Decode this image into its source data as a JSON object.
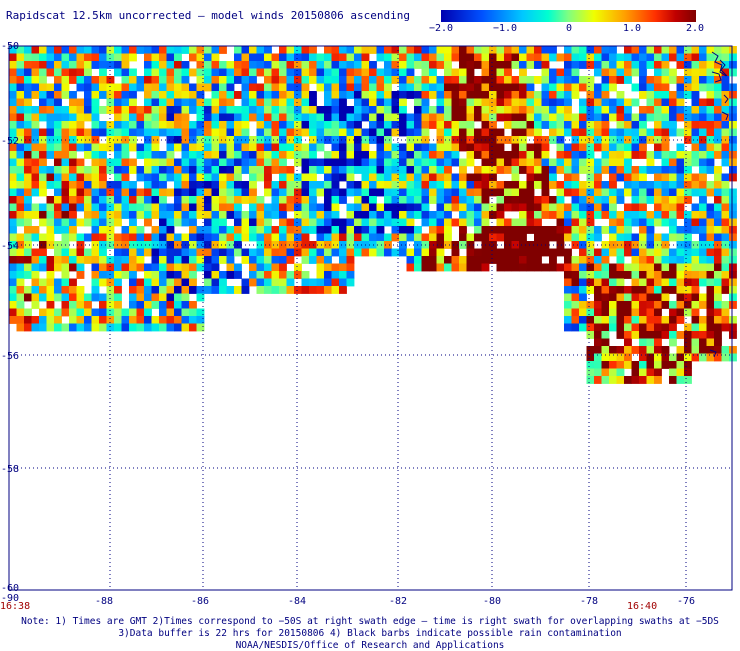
{
  "title": "Rapidscat 12.5km uncorrected — model winds 20150806 ascending",
  "colorbar": {
    "ticks": [
      {
        "value": -2.0,
        "label": "−2.0"
      },
      {
        "value": -1.0,
        "label": "−1.0"
      },
      {
        "value": 0,
        "label": "0"
      },
      {
        "value": 1.0,
        "label": "1.0"
      },
      {
        "value": 2.0,
        "label": "2.0"
      }
    ],
    "range": [
      -2.0,
      2.0
    ]
  },
  "map": {
    "lon_range": [
      -90,
      -75.2
    ],
    "lat_range": [
      -60,
      -49.8
    ],
    "lon_labels": [
      "-90",
      "-88",
      "-86",
      "-84",
      "-82",
      "-80",
      "-78",
      "-76"
    ],
    "lat_labels": [
      "-50",
      "-52",
      "-54",
      "-56",
      "-58",
      "-60"
    ],
    "grid": "dotted",
    "coastline_color": "#000080"
  },
  "times": {
    "left": "16:38",
    "right": "16:40"
  },
  "notes": {
    "line1": "Note: 1) Times are GMT 2)Times correspond to −50S at right swath edge — time is right swath for overlapping swaths at −5DS",
    "line2": "3)Data buffer is 22 hrs for 20150806 4) Black barbs indicate possible rain contamination",
    "line3": "NOAA/NESDIS/Office of Research and Applications"
  }
}
